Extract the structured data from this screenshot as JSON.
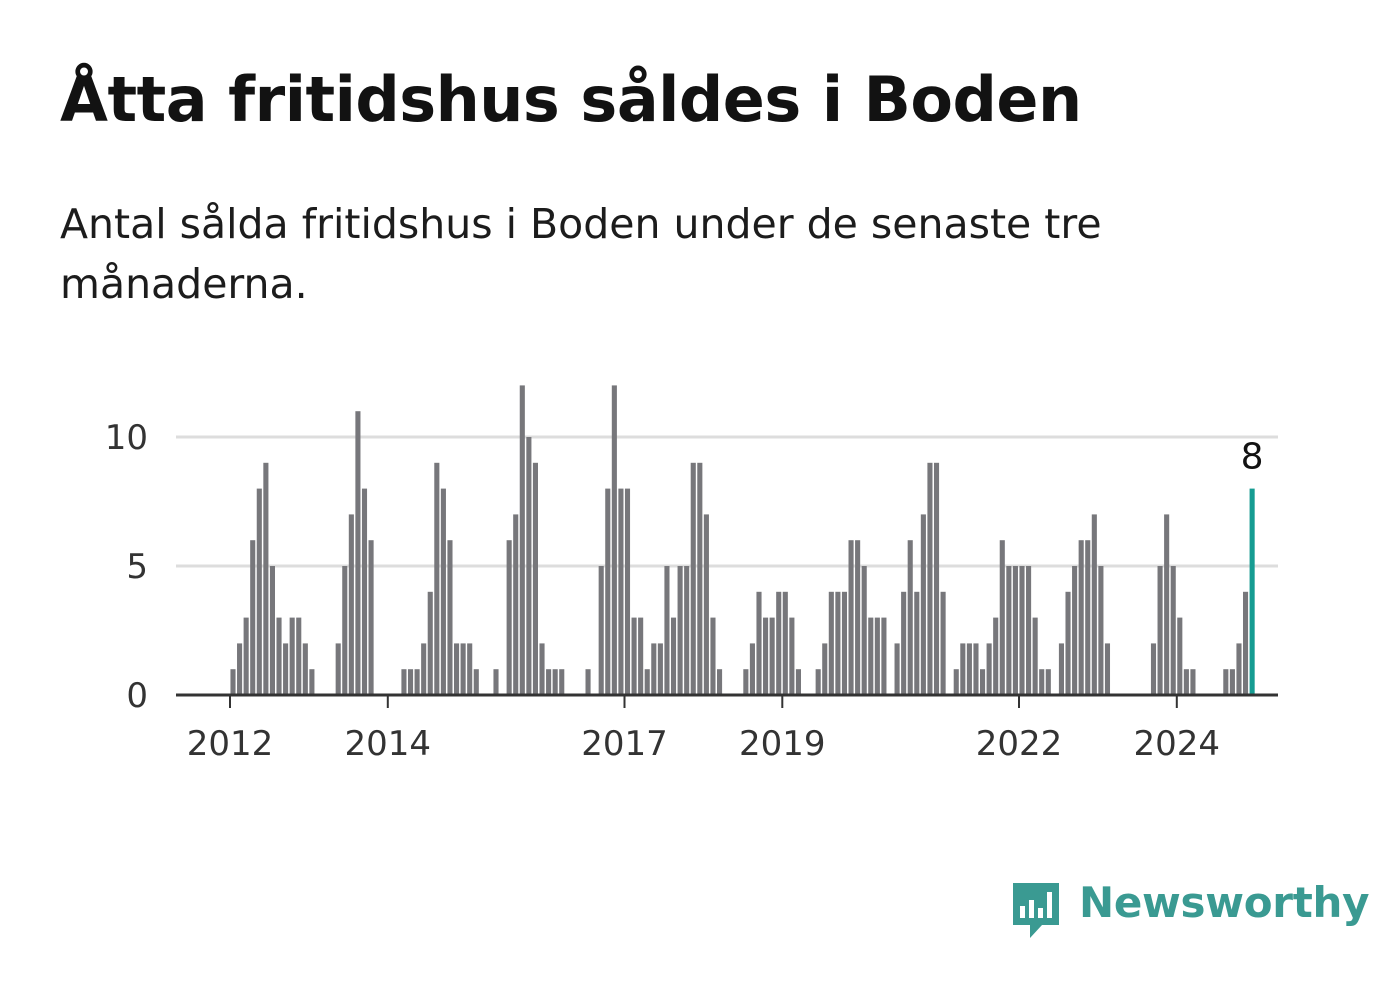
{
  "title": "Åtta fritidshus såldes i Boden",
  "subtitle": "Antal sålda fritidshus i Boden under de senaste tre månaderna.",
  "brand": {
    "name": "Newsworthy",
    "icon": "newsworthy-logo-icon",
    "color": "#3a9a92"
  },
  "colors": {
    "bar": "#77777b",
    "highlight": "#169c92",
    "grid": "#dddddd",
    "axis": "#333333"
  },
  "chart_data": {
    "type": "bar",
    "ylim": [
      0,
      12
    ],
    "yticks": [
      0,
      5,
      10
    ],
    "grid": true,
    "xticks": [
      {
        "label": "2012",
        "index": 0
      },
      {
        "label": "2014",
        "index": 24
      },
      {
        "label": "2017",
        "index": 60
      },
      {
        "label": "2019",
        "index": 84
      },
      {
        "label": "2022",
        "index": 120
      },
      {
        "label": "2024",
        "index": 144
      }
    ],
    "values": [
      1,
      2,
      3,
      6,
      8,
      9,
      5,
      3,
      2,
      3,
      3,
      2,
      1,
      0,
      0,
      0,
      2,
      5,
      7,
      11,
      8,
      6,
      0,
      0,
      0,
      0,
      1,
      1,
      1,
      2,
      4,
      9,
      8,
      6,
      2,
      2,
      2,
      1,
      0,
      0,
      1,
      0,
      6,
      7,
      12,
      10,
      9,
      2,
      1,
      1,
      1,
      0,
      0,
      0,
      1,
      0,
      5,
      8,
      12,
      8,
      8,
      3,
      3,
      1,
      2,
      2,
      5,
      3,
      5,
      5,
      9,
      9,
      7,
      3,
      1,
      0,
      0,
      0,
      1,
      2,
      4,
      3,
      3,
      4,
      4,
      3,
      1,
      0,
      0,
      1,
      2,
      4,
      4,
      4,
      6,
      6,
      5,
      3,
      3,
      3,
      0,
      2,
      4,
      6,
      4,
      7,
      9,
      9,
      4,
      0,
      1,
      2,
      2,
      2,
      1,
      2,
      3,
      6,
      5,
      5,
      5,
      5,
      3,
      1,
      1,
      0,
      2,
      4,
      5,
      6,
      6,
      7,
      5,
      2,
      0,
      0,
      0,
      0,
      0,
      0,
      2,
      5,
      7,
      5,
      3,
      1,
      1,
      0,
      0,
      0,
      0,
      1,
      1,
      2,
      4,
      8
    ],
    "highlight": {
      "index": 155,
      "value": 8,
      "label": "8"
    }
  }
}
